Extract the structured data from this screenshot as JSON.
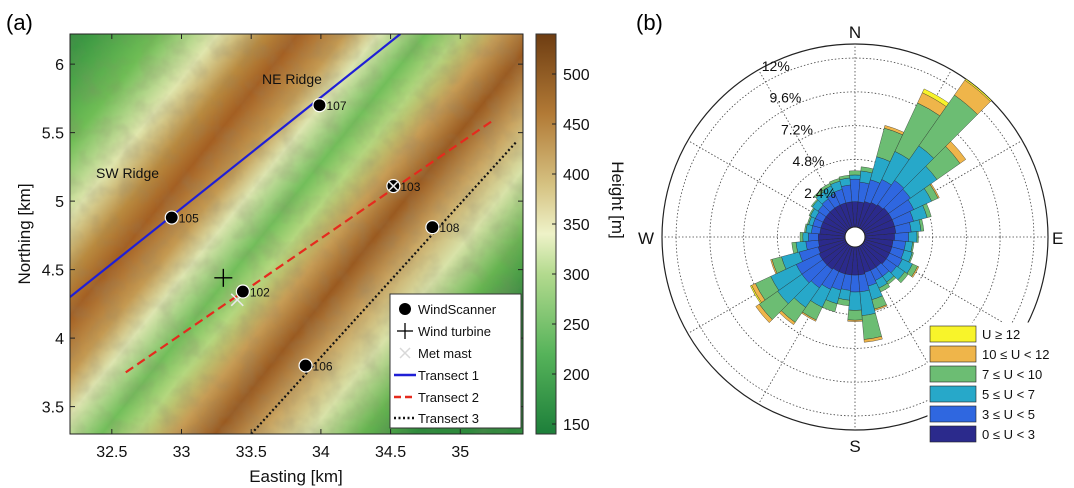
{
  "colors": {
    "transect1": "#1f1fd6",
    "transect2": "#e52a1e",
    "transect3": "#111111",
    "speed": [
      "#2b2a8c",
      "#2f67e0",
      "#27a8c9",
      "#6cbd73",
      "#efb54a",
      "#f8f42a"
    ]
  },
  "chart_data": [
    {
      "type": "heatmap",
      "panel_label": "(a)",
      "xlabel": "Easting [km]",
      "ylabel": "Northing [km]",
      "xlim": [
        32.2,
        35.45
      ],
      "ylim": [
        3.3,
        6.22
      ],
      "xticks": [
        "32.5",
        "33",
        "33.5",
        "34",
        "34.5",
        "35"
      ],
      "yticks": [
        "3.5",
        "4",
        "4.5",
        "5",
        "5.5",
        "6"
      ],
      "colorbar": {
        "label": "Height [m]",
        "range": [
          140,
          540
        ],
        "ticks": [
          "150",
          "200",
          "250",
          "300",
          "350",
          "400",
          "450",
          "500"
        ]
      },
      "annotations": [
        {
          "text": "NE Ridge",
          "x": 33.62,
          "y": 5.97
        },
        {
          "text": "SW Ridge",
          "x": 32.35,
          "y": 5.25
        }
      ],
      "windscanners": [
        {
          "name": "102",
          "x": 33.44,
          "y": 4.34
        },
        {
          "name": "103",
          "x": 34.52,
          "y": 5.11
        },
        {
          "name": "105",
          "x": 32.93,
          "y": 4.88
        },
        {
          "name": "106",
          "x": 33.89,
          "y": 3.8
        },
        {
          "name": "107",
          "x": 33.99,
          "y": 5.7
        },
        {
          "name": "108",
          "x": 34.8,
          "y": 4.81
        }
      ],
      "wind_turbine": {
        "x": 33.3,
        "y": 4.44
      },
      "met_masts": [
        {
          "x": 33.4,
          "y": 4.28
        },
        {
          "x": 34.52,
          "y": 5.11
        }
      ],
      "transects": [
        {
          "name": "Transect 1",
          "style": "solid",
          "x": [
            32.2,
            34.57
          ],
          "y": [
            4.3,
            6.22
          ]
        },
        {
          "name": "Transect 2",
          "style": "dashed",
          "x": [
            32.6,
            35.25
          ],
          "y": [
            3.75,
            5.6
          ]
        },
        {
          "name": "Transect 3",
          "style": "dotted",
          "x": [
            33.5,
            35.4
          ],
          "y": [
            3.3,
            5.43
          ]
        }
      ],
      "legend": {
        "placement": "bottom-right",
        "entries": [
          "WindScanner",
          "Wind turbine",
          "Met mast",
          "Transect 1",
          "Transect 2",
          "Transect 3"
        ]
      }
    },
    {
      "type": "wind-rose",
      "panel_label": "(b)",
      "directions": [
        "N",
        "E",
        "S",
        "W"
      ],
      "radial_ticks": [
        "2.4%",
        "4.8%",
        "7.2%",
        "9.6%",
        "12%"
      ],
      "radial_max": 13,
      "bin_width_deg": 10,
      "legend": {
        "placement": "bottom-right",
        "entries": [
          "U ≥ 12",
          "10 ≤ U < 12",
          "7 ≤ U < 10",
          "5 ≤ U < 7",
          "3 ≤ U < 5",
          "0 ≤ U < 3"
        ]
      },
      "speed_bins": [
        "0 ≤ U < 3",
        "3 ≤ U < 5",
        "5 ≤ U < 7",
        "7 ≤ U < 10",
        "10 ≤ U < 12",
        "U ≥ 12"
      ],
      "sectors": [
        {
          "dir": 0,
          "cum": [
            1.8,
            3.4,
            3.7,
            4.0,
            4.0,
            4.0
          ]
        },
        {
          "dir": 10,
          "cum": [
            1.8,
            3.2,
            4.0,
            4.3,
            4.3,
            4.3
          ]
        },
        {
          "dir": 20,
          "cum": [
            1.9,
            3.5,
            5.2,
            7.3,
            7.5,
            7.5
          ]
        },
        {
          "dir": 30,
          "cum": [
            2.0,
            3.8,
            6.0,
            9.8,
            10.6,
            10.9
          ]
        },
        {
          "dir": 40,
          "cum": [
            2.1,
            4.2,
            7.2,
            11.6,
            12.9,
            13.0
          ]
        },
        {
          "dir": 50,
          "cum": [
            2.2,
            4.1,
            6.4,
            8.4,
            8.9,
            8.9
          ]
        },
        {
          "dir": 60,
          "cum": [
            2.2,
            3.9,
            5.3,
            5.8,
            5.9,
            5.9
          ]
        },
        {
          "dir": 70,
          "cum": [
            2.2,
            3.6,
            4.6,
            4.9,
            4.9,
            4.9
          ]
        },
        {
          "dir": 80,
          "cum": [
            2.2,
            3.3,
            4.0,
            4.2,
            4.2,
            4.2
          ]
        },
        {
          "dir": 90,
          "cum": [
            2.1,
            3.1,
            3.7,
            3.8,
            3.8,
            3.8
          ]
        },
        {
          "dir": 100,
          "cum": [
            2.0,
            2.9,
            3.4,
            3.5,
            3.5,
            3.5
          ]
        },
        {
          "dir": 110,
          "cum": [
            2.0,
            2.9,
            3.5,
            3.6,
            3.6,
            3.6
          ]
        },
        {
          "dir": 120,
          "cum": [
            2.0,
            3.0,
            3.8,
            4.2,
            4.3,
            4.3
          ]
        },
        {
          "dir": 130,
          "cum": [
            2.0,
            2.9,
            3.6,
            3.9,
            3.9,
            3.9
          ]
        },
        {
          "dir": 140,
          "cum": [
            1.9,
            2.7,
            3.2,
            3.4,
            3.4,
            3.4
          ]
        },
        {
          "dir": 150,
          "cum": [
            1.9,
            2.7,
            3.3,
            3.6,
            3.6,
            3.6
          ]
        },
        {
          "dir": 160,
          "cum": [
            1.9,
            2.9,
            3.9,
            4.6,
            4.7,
            4.7
          ]
        },
        {
          "dir": 170,
          "cum": [
            2.0,
            3.2,
            4.9,
            6.6,
            6.8,
            6.8
          ]
        },
        {
          "dir": 180,
          "cum": [
            2.0,
            3.2,
            4.5,
            5.2,
            5.3,
            5.3
          ]
        },
        {
          "dir": 190,
          "cum": [
            2.0,
            3.1,
            3.8,
            4.2,
            4.2,
            4.2
          ]
        },
        {
          "dir": 200,
          "cum": [
            2.0,
            3.2,
            4.2,
            4.8,
            4.8,
            4.8
          ]
        },
        {
          "dir": 210,
          "cum": [
            2.0,
            3.4,
            4.8,
            5.8,
            5.9,
            5.9
          ]
        },
        {
          "dir": 220,
          "cum": [
            2.1,
            3.7,
            5.4,
            6.7,
            6.9,
            6.9
          ]
        },
        {
          "dir": 230,
          "cum": [
            2.1,
            3.9,
            6.0,
            7.6,
            7.9,
            7.9
          ]
        },
        {
          "dir": 240,
          "cum": [
            2.1,
            3.9,
            5.9,
            7.1,
            7.4,
            7.5
          ]
        },
        {
          "dir": 250,
          "cum": [
            2.0,
            3.4,
            4.7,
            5.4,
            5.5,
            5.5
          ]
        },
        {
          "dir": 260,
          "cum": [
            1.9,
            2.8,
            3.5,
            3.8,
            3.8,
            3.8
          ]
        },
        {
          "dir": 270,
          "cum": [
            1.9,
            2.6,
            3.0,
            3.2,
            3.2,
            3.2
          ]
        },
        {
          "dir": 280,
          "cum": [
            1.8,
            2.4,
            2.8,
            2.9,
            2.9,
            2.9
          ]
        },
        {
          "dir": 290,
          "cum": [
            1.8,
            2.4,
            2.7,
            2.8,
            2.8,
            2.8
          ]
        },
        {
          "dir": 300,
          "cum": [
            1.8,
            2.4,
            2.8,
            2.9,
            2.9,
            2.9
          ]
        },
        {
          "dir": 310,
          "cum": [
            1.8,
            2.5,
            3.0,
            3.1,
            3.1,
            3.1
          ]
        },
        {
          "dir": 320,
          "cum": [
            1.8,
            2.6,
            3.2,
            3.4,
            3.4,
            3.4
          ]
        },
        {
          "dir": 330,
          "cum": [
            1.8,
            2.7,
            3.3,
            3.5,
            3.5,
            3.5
          ]
        },
        {
          "dir": 340,
          "cum": [
            1.8,
            2.8,
            3.4,
            3.6,
            3.6,
            3.6
          ]
        },
        {
          "dir": 350,
          "cum": [
            1.8,
            3.0,
            3.5,
            3.7,
            3.7,
            3.7
          ]
        }
      ]
    }
  ]
}
